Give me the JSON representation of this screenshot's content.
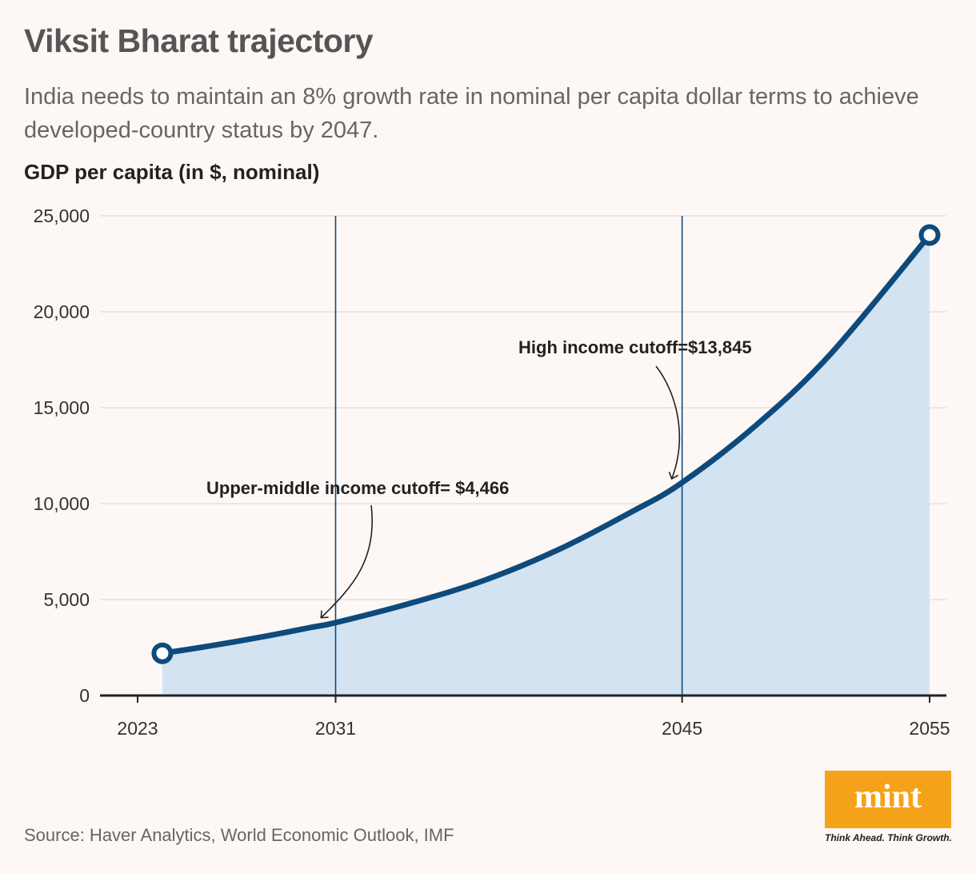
{
  "title": "Viksit Bharat trajectory",
  "subtitle": "India needs to maintain an 8% growth rate in nominal per capita dollar terms to achieve developed-country status by 2047.",
  "source": "Source: Haver Analytics, World Economic Outlook, IMF",
  "brand": {
    "logo_text": "mint",
    "tagline": "Think Ahead. Think Growth.",
    "color": "#f5a21b"
  },
  "chart_data": {
    "type": "area",
    "ylabel": "GDP per capita (in $, nominal)",
    "xlim": [
      2023,
      2055
    ],
    "ylim": [
      0,
      25000
    ],
    "x_ticks": [
      2023,
      2031,
      2045,
      2055
    ],
    "y_ticks": [
      0,
      5000,
      10000,
      15000,
      20000,
      25000
    ],
    "y_tick_labels": [
      "0",
      "5,000",
      "10,000",
      "15,000",
      "20,000",
      "25,000"
    ],
    "grid": true,
    "colors": {
      "line": "#0e4a7c",
      "fill": "#d3e3f2",
      "grid": "#e5e0dc",
      "reference_line": "#0e4a7c"
    },
    "series": [
      {
        "x": [
          2024,
          2026,
          2028,
          2030,
          2031,
          2034,
          2037,
          2040,
          2043,
          2045,
          2048,
          2051,
          2055
        ],
        "values": [
          2200,
          2600,
          3050,
          3550,
          3800,
          4800,
          6000,
          7600,
          9600,
          11100,
          14100,
          17800,
          24000
        ]
      }
    ],
    "reference_lines": [
      {
        "x": 2031,
        "label": "Upper-middle income cutoff= $4,466"
      },
      {
        "x": 2045,
        "label": "High income cutoff=$13,845"
      }
    ]
  }
}
